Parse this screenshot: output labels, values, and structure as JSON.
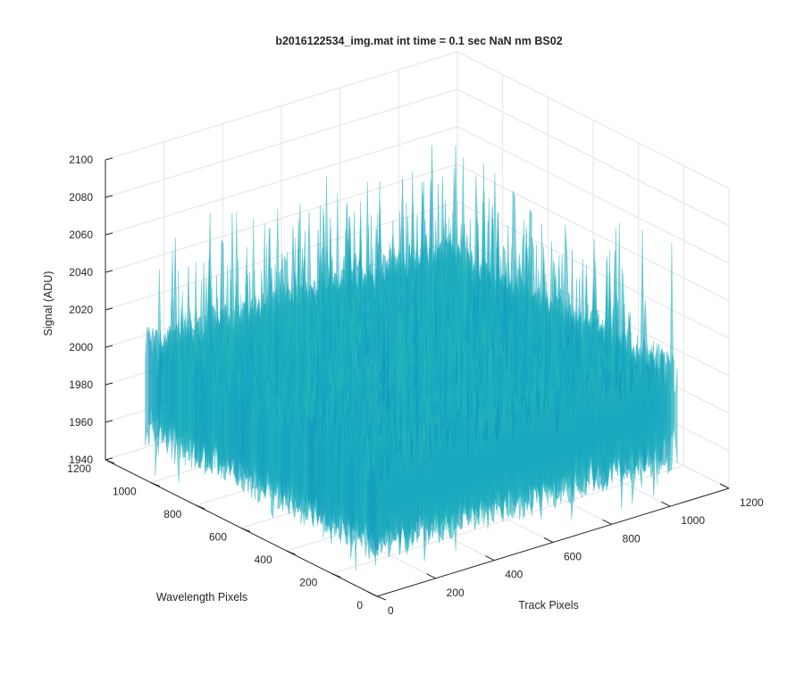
{
  "chart_data": {
    "type": "surface",
    "title": "b2016122534_img.mat int time = 0.1 sec  NaN nm BS02",
    "xlabel": "Track Pixels",
    "ylabel": "Wavelength Pixels",
    "zlabel": "Signal (ADU)",
    "xlim": [
      0,
      1200
    ],
    "ylim": [
      0,
      1200
    ],
    "zlim": [
      1940,
      2100
    ],
    "x_ticks": [
      "0",
      "200",
      "400",
      "600",
      "800",
      "1000",
      "1200"
    ],
    "y_ticks": [
      "0",
      "200",
      "400",
      "600",
      "800",
      "1000",
      "1200"
    ],
    "z_ticks": [
      "1940",
      "1960",
      "1980",
      "2000",
      "2020",
      "2040",
      "2060",
      "2080",
      "2100"
    ],
    "grid": true,
    "colormap": "parula",
    "colors": {
      "low": "#0072bd",
      "mid": "#22b8c0",
      "high": "#c9dc48"
    },
    "data_extent": {
      "x": [
        0,
        1024
      ],
      "y": [
        0,
        1024
      ]
    },
    "z_typical_range": [
      1960,
      2020
    ],
    "z_mean": 1990,
    "z_peak_max": 2085,
    "z_min": 1945
  }
}
